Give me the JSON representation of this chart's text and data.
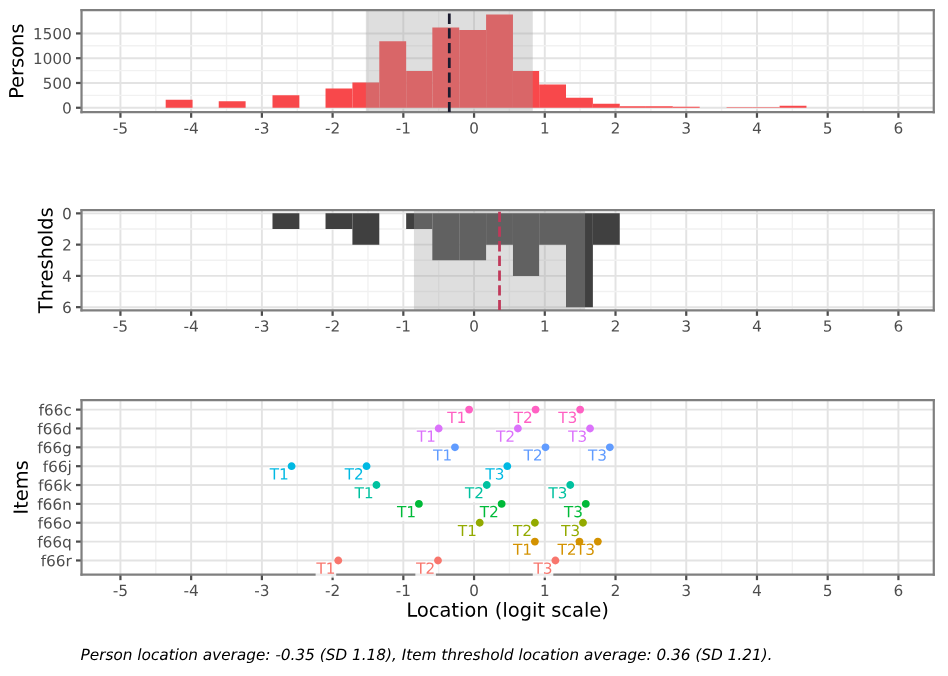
{
  "chart_data": [
    {
      "type": "histogram",
      "ylabel": "Persons",
      "bins": [
        -4.36,
        -3.98,
        -3.61,
        -3.23,
        -2.85,
        -2.47,
        -2.1,
        -1.72,
        -1.34,
        -0.96,
        -0.59,
        -0.21,
        0.17,
        0.55,
        0.92,
        1.3,
        1.68,
        2.06,
        2.43,
        2.81,
        3.19,
        3.57,
        3.94,
        4.32,
        4.7
      ],
      "values": [
        160,
        0,
        130,
        0,
        250,
        0,
        390,
        510,
        1340,
        740,
        1620,
        1570,
        1880,
        740,
        470,
        200,
        80,
        30,
        30,
        20,
        0,
        10,
        10,
        40
      ],
      "color": "#f8484b",
      "xlim": [
        -5.55,
        6.5
      ],
      "xticks": [
        -5,
        -4,
        -3,
        -2,
        -1,
        0,
        1,
        2,
        3,
        4,
        5,
        6
      ],
      "ylim": [
        -90,
        1970
      ],
      "yticks": [
        0,
        500,
        1000,
        1500
      ],
      "bands": [
        {
          "axis": "x",
          "from": -1.53,
          "to": 0.83,
          "color": "#a0a0a0"
        }
      ],
      "ref_lines": [
        {
          "axis": "x",
          "value": -0.35,
          "color": "#1a1a2e",
          "line_style": "dashed"
        }
      ],
      "grid": true
    },
    {
      "type": "histogram",
      "ylabel": "Thresholds",
      "bins": [
        -2.85,
        -2.47,
        -2.1,
        -1.72,
        -1.34,
        -0.96,
        -0.59,
        -0.21,
        0.17,
        0.55,
        0.92,
        1.3,
        1.68,
        2.06
      ],
      "values": [
        1,
        0,
        1,
        2,
        0,
        1,
        3,
        3,
        2,
        4,
        2,
        6,
        2
      ],
      "color": "#404040",
      "xlim": [
        -5.55,
        6.5
      ],
      "xticks": [
        -5,
        -4,
        -3,
        -2,
        -1,
        0,
        1,
        2,
        3,
        4,
        5,
        6
      ],
      "ylim": [
        6.2,
        -0.2
      ],
      "yticks": [
        0,
        2,
        4,
        6
      ],
      "bands": [
        {
          "axis": "x",
          "from": -0.85,
          "to": 1.57,
          "color": "#a0a0a0"
        }
      ],
      "ref_lines": [
        {
          "axis": "x",
          "value": 0.36,
          "color": "#c0395a",
          "line_style": "dashed"
        }
      ],
      "grid": true
    },
    {
      "type": "scatter",
      "orientation": "horizontal",
      "xlabel": "Location (logit scale)",
      "ylabel": "Items",
      "categories": [
        "f66c",
        "f66d",
        "f66g",
        "f66j",
        "f66k",
        "f66n",
        "f66o",
        "f66q",
        "f66r"
      ],
      "series": [
        {
          "name": "T1",
          "values": [
            -0.07,
            -0.5,
            -0.27,
            -2.58,
            -1.38,
            -0.78,
            0.08,
            0.86,
            -1.92
          ],
          "colors": [
            "#ff61c3",
            "#db72fb",
            "#619cff",
            "#00b9e3",
            "#00c19f",
            "#00ba38",
            "#93aa00",
            "#d39200",
            "#f8766d"
          ]
        },
        {
          "name": "T2",
          "values": [
            0.87,
            0.62,
            1.01,
            -1.52,
            0.18,
            0.39,
            0.86,
            1.49,
            -0.51
          ],
          "colors": [
            "#ff61c3",
            "#db72fb",
            "#619cff",
            "#00b9e3",
            "#00c19f",
            "#00ba38",
            "#93aa00",
            "#d39200",
            "#f8766d"
          ]
        },
        {
          "name": "T3",
          "values": [
            1.5,
            1.64,
            1.92,
            0.47,
            1.36,
            1.58,
            1.54,
            1.75,
            1.15
          ],
          "colors": [
            "#ff61c3",
            "#db72fb",
            "#619cff",
            "#00b9e3",
            "#00c19f",
            "#00ba38",
            "#93aa00",
            "#d39200",
            "#f8766d"
          ]
        }
      ],
      "marker": "circle",
      "xlim": [
        -5.55,
        6.5
      ],
      "xticks": [
        -5,
        -4,
        -3,
        -2,
        -1,
        0,
        1,
        2,
        3,
        4,
        5,
        6
      ],
      "grid": true,
      "annotations": [
        "Person location average: -0.35 (SD 1.18), Item threshold location average: 0.36 (SD 1.21)."
      ]
    }
  ]
}
